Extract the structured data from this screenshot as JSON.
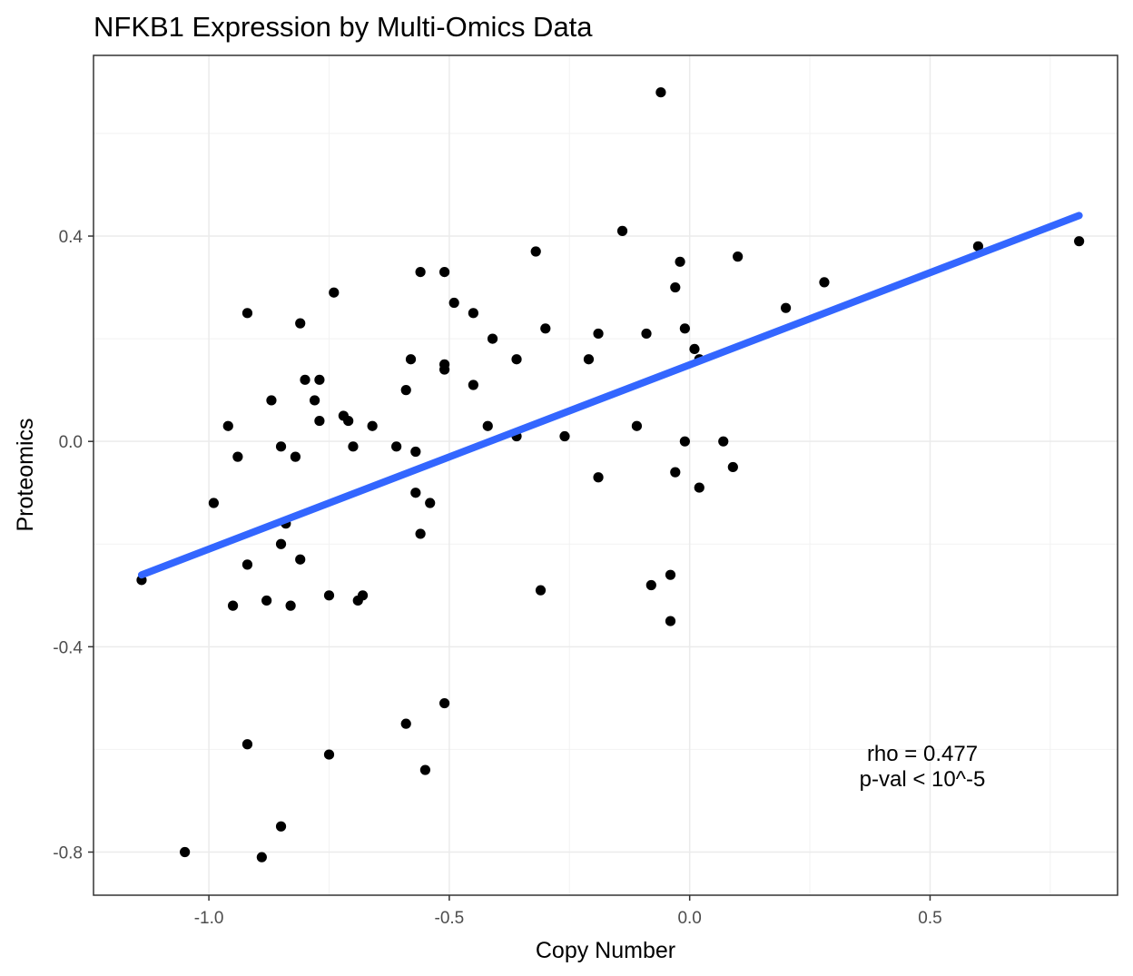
{
  "chart_data": {
    "type": "scatter",
    "title": "NFKB1 Expression by Multi-Omics Data",
    "xlabel": "Copy Number",
    "ylabel": "Proteomics",
    "xlim": [
      -1.24,
      0.89
    ],
    "ylim": [
      -0.884,
      0.752
    ],
    "x_ticks": [
      -1.0,
      -0.5,
      0.0,
      0.5
    ],
    "x_tick_labels": [
      "-1.0",
      "-0.5",
      "0.0",
      "0.5"
    ],
    "y_ticks": [
      -0.8,
      -0.4,
      0.0,
      0.4
    ],
    "y_tick_labels": [
      "-0.8",
      "-0.4",
      "0.0",
      "0.4"
    ],
    "grid": true,
    "legend": "none",
    "point_color": "#000000",
    "fit_line": {
      "x": [
        -1.14,
        0.81
      ],
      "y": [
        -0.26,
        0.44
      ],
      "color": "#3366ff"
    },
    "annotations": [
      "rho =  0.477",
      "p-val < 10^-5"
    ],
    "points": [
      {
        "x": -1.14,
        "y": -0.27
      },
      {
        "x": -1.05,
        "y": -0.8
      },
      {
        "x": -0.99,
        "y": -0.12
      },
      {
        "x": -0.96,
        "y": 0.03
      },
      {
        "x": -0.95,
        "y": -0.32
      },
      {
        "x": -0.94,
        "y": -0.03
      },
      {
        "x": -0.92,
        "y": 0.25
      },
      {
        "x": -0.92,
        "y": -0.24
      },
      {
        "x": -0.92,
        "y": -0.59
      },
      {
        "x": -0.89,
        "y": -0.81
      },
      {
        "x": -0.88,
        "y": -0.31
      },
      {
        "x": -0.87,
        "y": 0.08
      },
      {
        "x": -0.85,
        "y": -0.01
      },
      {
        "x": -0.85,
        "y": -0.2
      },
      {
        "x": -0.85,
        "y": -0.75
      },
      {
        "x": -0.84,
        "y": -0.16
      },
      {
        "x": -0.83,
        "y": -0.32
      },
      {
        "x": -0.82,
        "y": -0.03
      },
      {
        "x": -0.81,
        "y": 0.23
      },
      {
        "x": -0.81,
        "y": -0.23
      },
      {
        "x": -0.8,
        "y": 0.12
      },
      {
        "x": -0.78,
        "y": 0.08
      },
      {
        "x": -0.77,
        "y": 0.12
      },
      {
        "x": -0.77,
        "y": 0.04
      },
      {
        "x": -0.75,
        "y": -0.3
      },
      {
        "x": -0.75,
        "y": -0.61
      },
      {
        "x": -0.74,
        "y": 0.29
      },
      {
        "x": -0.72,
        "y": 0.05
      },
      {
        "x": -0.71,
        "y": 0.04
      },
      {
        "x": -0.7,
        "y": -0.01
      },
      {
        "x": -0.69,
        "y": -0.31
      },
      {
        "x": -0.68,
        "y": -0.3
      },
      {
        "x": -0.66,
        "y": 0.03
      },
      {
        "x": -0.61,
        "y": -0.01
      },
      {
        "x": -0.59,
        "y": 0.1
      },
      {
        "x": -0.59,
        "y": -0.55
      },
      {
        "x": -0.58,
        "y": 0.16
      },
      {
        "x": -0.57,
        "y": -0.02
      },
      {
        "x": -0.57,
        "y": -0.1
      },
      {
        "x": -0.56,
        "y": 0.33
      },
      {
        "x": -0.56,
        "y": -0.18
      },
      {
        "x": -0.55,
        "y": -0.64
      },
      {
        "x": -0.54,
        "y": -0.12
      },
      {
        "x": -0.51,
        "y": 0.33
      },
      {
        "x": -0.51,
        "y": 0.15
      },
      {
        "x": -0.51,
        "y": 0.14
      },
      {
        "x": -0.51,
        "y": -0.51
      },
      {
        "x": -0.49,
        "y": 0.27
      },
      {
        "x": -0.45,
        "y": 0.25
      },
      {
        "x": -0.45,
        "y": 0.11
      },
      {
        "x": -0.42,
        "y": 0.03
      },
      {
        "x": -0.41,
        "y": 0.2
      },
      {
        "x": -0.36,
        "y": 0.16
      },
      {
        "x": -0.36,
        "y": 0.01
      },
      {
        "x": -0.32,
        "y": 0.37
      },
      {
        "x": -0.31,
        "y": -0.29
      },
      {
        "x": -0.3,
        "y": 0.22
      },
      {
        "x": -0.26,
        "y": 0.01
      },
      {
        "x": -0.21,
        "y": 0.16
      },
      {
        "x": -0.19,
        "y": 0.21
      },
      {
        "x": -0.19,
        "y": -0.07
      },
      {
        "x": -0.14,
        "y": 0.41
      },
      {
        "x": -0.11,
        "y": 0.03
      },
      {
        "x": -0.09,
        "y": 0.21
      },
      {
        "x": -0.08,
        "y": -0.28
      },
      {
        "x": -0.06,
        "y": 0.68
      },
      {
        "x": -0.04,
        "y": -0.26
      },
      {
        "x": -0.04,
        "y": -0.35
      },
      {
        "x": -0.03,
        "y": 0.3
      },
      {
        "x": -0.03,
        "y": -0.06
      },
      {
        "x": -0.02,
        "y": 0.35
      },
      {
        "x": -0.01,
        "y": 0.22
      },
      {
        "x": -0.01,
        "y": 0.0
      },
      {
        "x": 0.01,
        "y": 0.18
      },
      {
        "x": 0.02,
        "y": 0.16
      },
      {
        "x": 0.02,
        "y": -0.09
      },
      {
        "x": 0.07,
        "y": 0.0
      },
      {
        "x": 0.09,
        "y": -0.05
      },
      {
        "x": 0.1,
        "y": 0.36
      },
      {
        "x": 0.2,
        "y": 0.26
      },
      {
        "x": 0.28,
        "y": 0.31
      },
      {
        "x": 0.6,
        "y": 0.38
      },
      {
        "x": 0.81,
        "y": 0.39
      }
    ]
  }
}
